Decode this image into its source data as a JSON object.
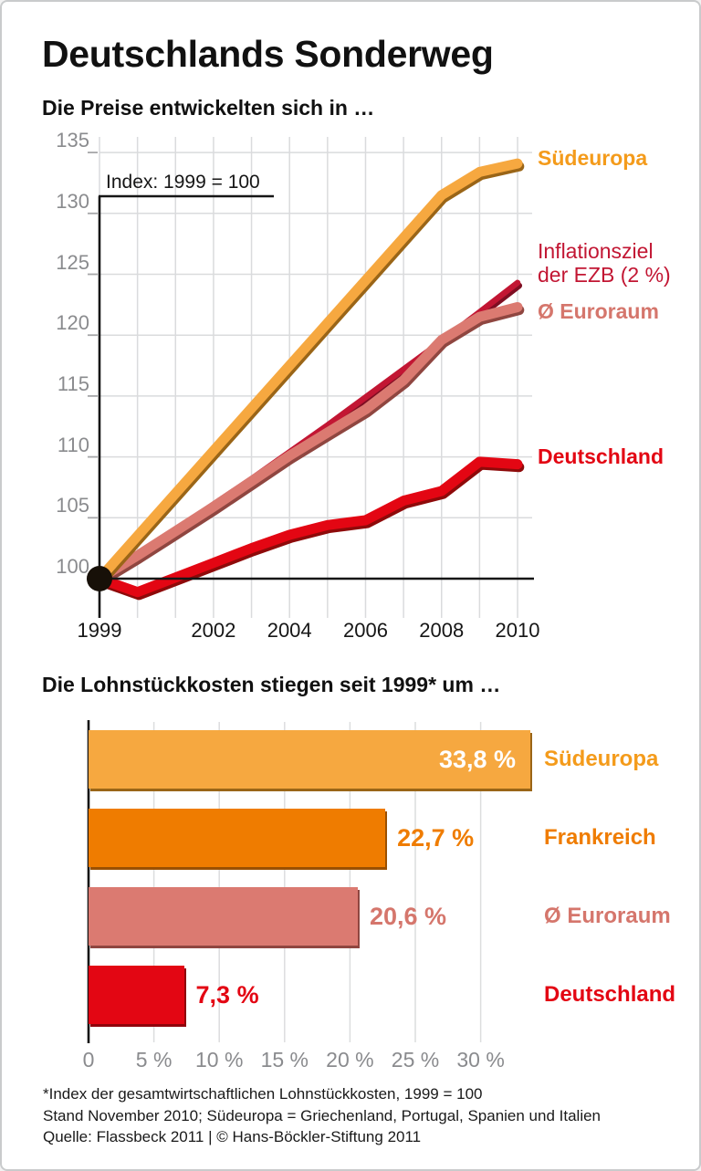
{
  "title": "Deutschlands Sonderweg",
  "chart_data": [
    {
      "type": "line",
      "title": "Die Preise entwickelten sich in …",
      "annotation": "Index: 1999 = 100",
      "x": [
        1999,
        2000,
        2001,
        2002,
        2003,
        2004,
        2005,
        2006,
        2007,
        2008,
        2009,
        2010
      ],
      "xticks": [
        1999,
        2002,
        2004,
        2006,
        2008,
        2010
      ],
      "xtick_labels": [
        "1999",
        "2002",
        "2004",
        "2006",
        "2008",
        "2010"
      ],
      "yticks": [
        100,
        105,
        110,
        115,
        120,
        125,
        130,
        135
      ],
      "ylim": [
        97,
        136
      ],
      "xlim": [
        1999,
        2010
      ],
      "grid": true,
      "legend_position": "right",
      "series": [
        {
          "name": "Inflationsziel der EZB (2 %)",
          "color": "#C21633",
          "shadow": "#7E0E22",
          "stroke_width": 6.5,
          "values": [
            100,
            102,
            104,
            106.1,
            108.2,
            110.4,
            112.6,
            114.9,
            117.2,
            119.5,
            121.9,
            124.3
          ]
        },
        {
          "name": "Ø Euroraum",
          "color": "#DB7A71",
          "shadow": "#8F4640",
          "stroke_width": 11,
          "values": [
            100,
            101.9,
            103.9,
            105.9,
            108,
            110.1,
            112,
            113.9,
            116.3,
            119.6,
            121.5,
            122.3
          ]
        },
        {
          "name": "Südeuropa",
          "color": "#F6A840",
          "shadow": "#9A6517",
          "stroke_width": 11,
          "values": [
            100,
            103.5,
            107,
            110.5,
            114,
            117.5,
            121,
            124.5,
            128,
            131.5,
            133.4,
            134.1
          ]
        },
        {
          "name": "Deutschland",
          "color": "#E30613",
          "shadow": "#8E0A0A",
          "stroke_width": 11,
          "values": [
            100,
            98.9,
            100.1,
            101.3,
            102.5,
            103.6,
            104.4,
            104.8,
            106.4,
            107.2,
            109.6,
            109.4
          ]
        }
      ],
      "legend": [
        {
          "text": "Südeuropa",
          "color": "#F49B1B",
          "bold": true
        },
        {
          "text": "Inflationsziel der EZB (2 %)",
          "color": "#C21633",
          "bold": false
        },
        {
          "text": "Ø Euroraum",
          "color": "#D5766C",
          "bold": true
        },
        {
          "text": "Deutschland",
          "color": "#E30613",
          "bold": true
        }
      ],
      "start_marker": {
        "x": 1999,
        "y": 100,
        "color": "#171008"
      }
    },
    {
      "type": "bar",
      "title": "Die Lohnstückkosten stiegen seit 1999* um …",
      "categories": [
        "Südeuropa",
        "Frankreich",
        "Ø Euroraum",
        "Deutschland"
      ],
      "values": [
        33.8,
        22.7,
        20.6,
        7.3
      ],
      "value_labels": [
        "33,8 %",
        "22,7 %",
        "20,6 %",
        "7,3 %"
      ],
      "bar_colors": [
        "#F6A840",
        "#EF7C00",
        "#DB7A71",
        "#E30613"
      ],
      "bar_shadows": [
        "#9A6517",
        "#9A5000",
        "#8F4640",
        "#90040C"
      ],
      "label_colors": [
        "#F49B1B",
        "#EF7C00",
        "#D5766C",
        "#E30613"
      ],
      "value_inside": [
        true,
        false,
        false,
        false
      ],
      "xticks": [
        0,
        5,
        10,
        15,
        20,
        25,
        30
      ],
      "xtick_labels": [
        "0",
        "5 %",
        "10 %",
        "15 %",
        "20 %",
        "25 %",
        "30 %"
      ],
      "xlim": [
        0,
        33.8
      ],
      "ylabel": "",
      "xlabel": ""
    }
  ],
  "footnotes": [
    "*Index der gesamtwirtschaftlichen Lohnstückkosten, 1999 = 100",
    "Stand November 2010; Südeuropa = Griechenland, Portugal, Spanien und Italien",
    "Quelle: Flassbeck 2011 | © Hans-Böckler-Stiftung 2011"
  ]
}
